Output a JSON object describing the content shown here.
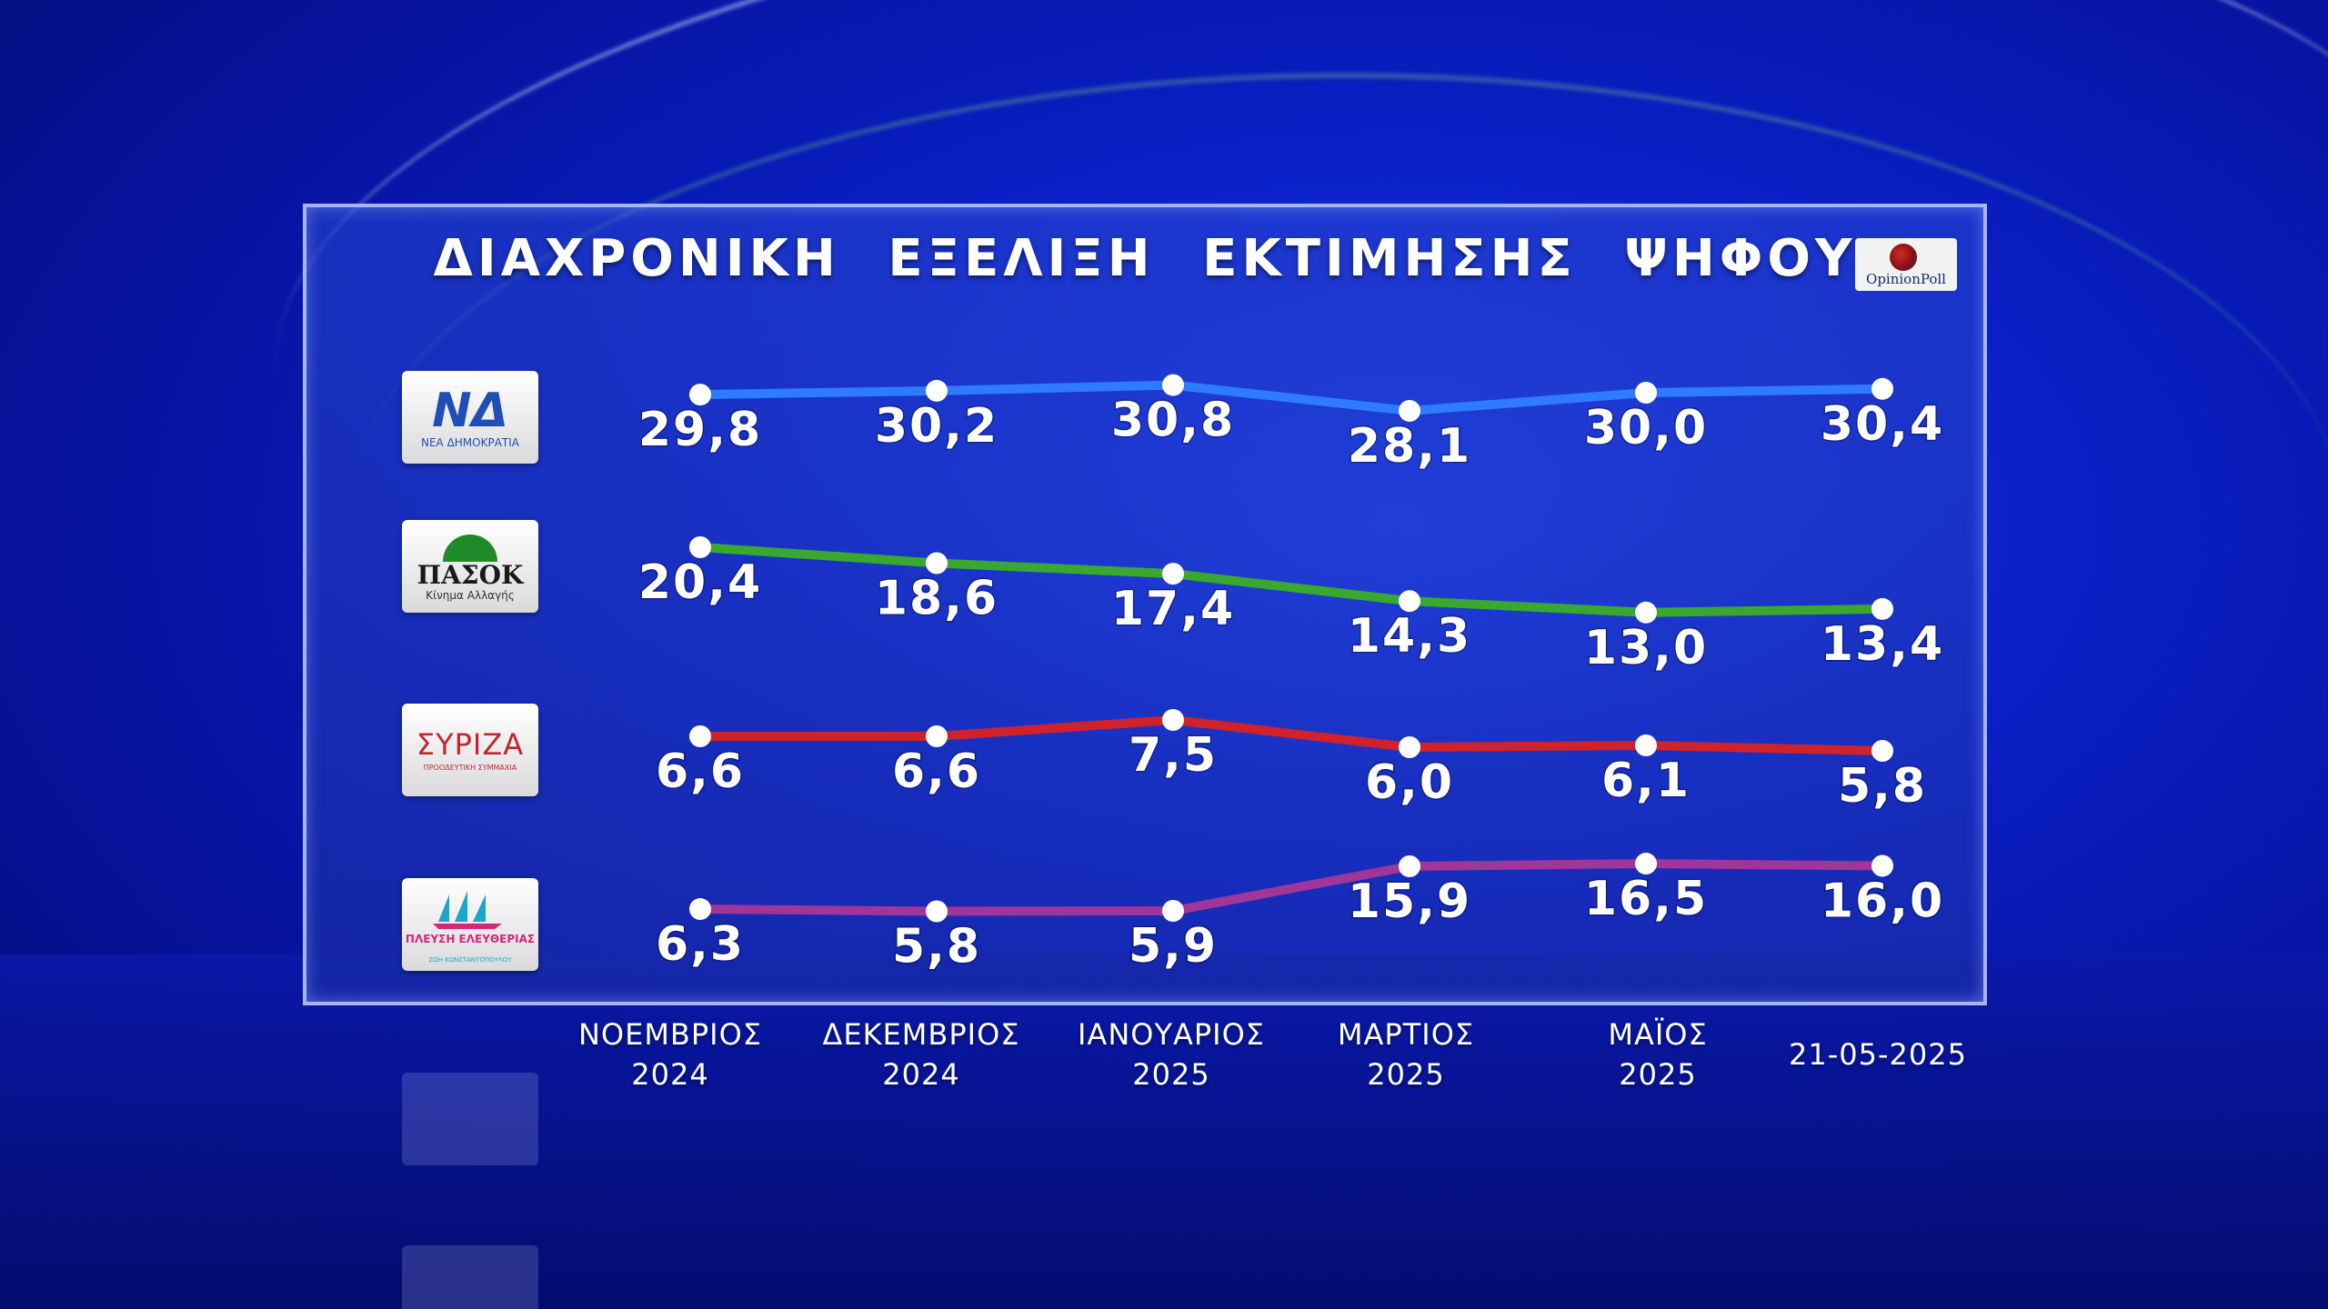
{
  "title": "ΔΙΑΧΡΟΝΙΚΗ ΕΞΕΛΙΞΗ ΕΚΤΙΜΗΣΗΣ ΨΗΦΟΥ",
  "brand": "OpinionPoll",
  "logos": {
    "nd": {
      "mark": "ΝΔ",
      "sub": "ΝΕΑ ΔΗΜΟΚΡΑΤΙΑ"
    },
    "pasok": {
      "mark": "ΠΑΣΟΚ",
      "sub": "Κίνημα Αλλαγής"
    },
    "syriza": {
      "mark": "ΣΥΡΙΖΑ",
      "sub": "ΠΡΟΟΔΕΥΤΙΚΗ ΣΥΜΜΑΧΙΑ"
    },
    "plefsi": {
      "mark": "ΠΛΕΥΣΗ ΕΛΕΥΘΕΡΙΑΣ",
      "sub": "ΖΩΗ ΚΩΝΣΤΑΝΤΟΠΟΥΛΟΥ"
    }
  },
  "chart_data": {
    "type": "line",
    "title": "ΔΙΑΧΡΟΝΙΚΗ ΕΞΕΛΙΞΗ ΕΚΤΙΜΗΣΗΣ ΨΗΦΟΥ",
    "categories": [
      [
        "ΝΟΕΜΒΡΙΟΣ",
        "2024"
      ],
      [
        "ΔΕΚΕΜΒΡΙΟΣ",
        "2024"
      ],
      [
        "ΙΑΝΟΥΑΡΙΟΣ",
        "2025"
      ],
      [
        "ΜΑΡΤΙΟΣ",
        "2025"
      ],
      [
        "ΜΑΪΟΣ",
        "2025"
      ],
      [
        "21-05-2025"
      ]
    ],
    "series": [
      {
        "key": "nd",
        "color": "#2f7bff",
        "values": [
          29.8,
          30.2,
          30.8,
          28.1,
          30.0,
          30.4
        ],
        "labels": [
          "29,8",
          "30,2",
          "30,8",
          "28,1",
          "30,0",
          "30,4"
        ]
      },
      {
        "key": "pasok",
        "color": "#3aa82e",
        "values": [
          20.4,
          18.6,
          17.4,
          14.3,
          13.0,
          13.4
        ],
        "labels": [
          "20,4",
          "18,6",
          "17,4",
          "14,3",
          "13,0",
          "13,4"
        ]
      },
      {
        "key": "syriza",
        "color": "#d0222a",
        "values": [
          6.6,
          6.6,
          7.5,
          6.0,
          6.1,
          5.8
        ],
        "labels": [
          "6,6",
          "6,6",
          "7,5",
          "6,0",
          "6,1",
          "5,8"
        ]
      },
      {
        "key": "plefsi",
        "color": "#a0359a",
        "values": [
          6.3,
          5.8,
          5.9,
          15.9,
          16.5,
          16.0
        ],
        "labels": [
          "6,3",
          "5,8",
          "5,9",
          "15,9",
          "16,5",
          "16,0"
        ]
      }
    ],
    "legend": "party logos on the left",
    "grid": false
  }
}
